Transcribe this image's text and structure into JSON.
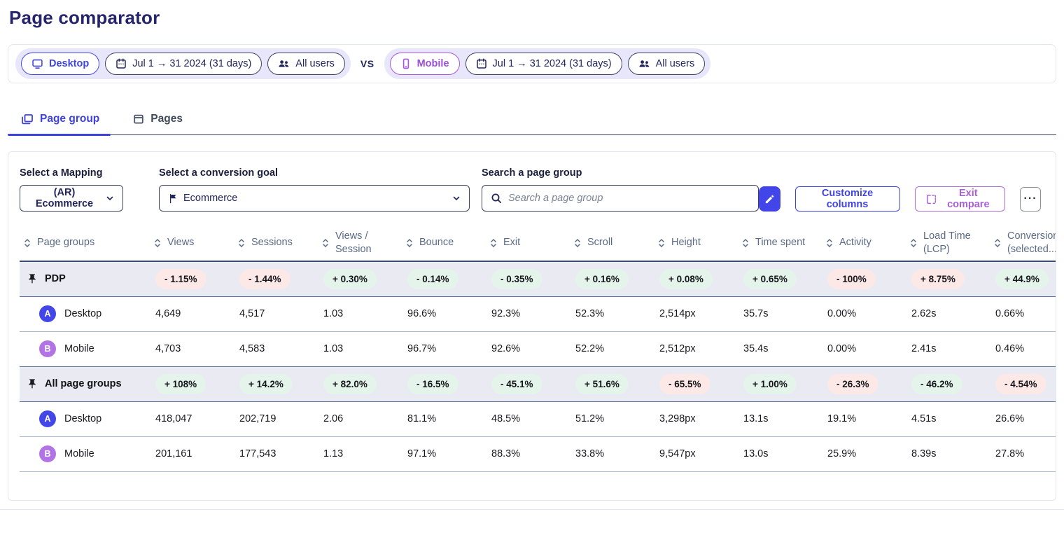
{
  "title": "Page comparator",
  "compare_bar": {
    "vs": "VS",
    "side_a": {
      "device": "Desktop",
      "date_range": "Jul 1 → 31 2024 (31 days)",
      "segment": "All users"
    },
    "side_b": {
      "device": "Mobile",
      "date_range": "Jul 1 → 31 2024 (31 days)",
      "segment": "All users"
    }
  },
  "tabs": {
    "page_group": "Page group",
    "pages": "Pages"
  },
  "controls": {
    "mapping_label": "Select a Mapping",
    "mapping_value": "(AR) Ecommerce",
    "goal_label": "Select a conversion goal",
    "goal_value": "Ecommerce",
    "search_label": "Search a page group",
    "search_placeholder": "Search a page group",
    "customize_columns": "Customize columns",
    "exit_compare": "Exit compare",
    "more": "···"
  },
  "table": {
    "columns": [
      "Page groups",
      "Views",
      "Sessions",
      "Views / Session",
      "Bounce",
      "Exit",
      "Scroll",
      "Height",
      "Time spent",
      "Activity",
      "Load Time (LCP)",
      "Conversion (selected..."
    ],
    "rows": [
      {
        "kind": "summary",
        "pinned": true,
        "label": "PDP",
        "deltas": [
          {
            "text": "- 1.15%",
            "tone": "bad"
          },
          {
            "text": "- 1.44%",
            "tone": "bad"
          },
          {
            "text": "+ 0.30%",
            "tone": "good"
          },
          {
            "text": "- 0.14%",
            "tone": "good"
          },
          {
            "text": "- 0.35%",
            "tone": "good"
          },
          {
            "text": "+ 0.16%",
            "tone": "good"
          },
          {
            "text": "+ 0.08%",
            "tone": "good"
          },
          {
            "text": "+ 0.65%",
            "tone": "good"
          },
          {
            "text": "- 100%",
            "tone": "bad"
          },
          {
            "text": "+ 8.75%",
            "tone": "bad"
          },
          {
            "text": "+ 44.9%",
            "tone": "good"
          }
        ]
      },
      {
        "kind": "data",
        "badge": "A",
        "badge_tone": "a",
        "label": "Desktop",
        "values": [
          "4,649",
          "4,517",
          "1.03",
          "96.6%",
          "92.3%",
          "52.3%",
          "2,514px",
          "35.7s",
          "0.00%",
          "2.62s",
          "0.66%"
        ]
      },
      {
        "kind": "data",
        "badge": "B",
        "badge_tone": "b",
        "label": "Mobile",
        "values": [
          "4,703",
          "4,583",
          "1.03",
          "96.7%",
          "92.6%",
          "52.2%",
          "2,512px",
          "35.4s",
          "0.00%",
          "2.41s",
          "0.46%"
        ]
      },
      {
        "kind": "summary",
        "pinned": true,
        "label": "All page groups",
        "deltas": [
          {
            "text": "+ 108%",
            "tone": "good"
          },
          {
            "text": "+ 14.2%",
            "tone": "good"
          },
          {
            "text": "+ 82.0%",
            "tone": "good"
          },
          {
            "text": "- 16.5%",
            "tone": "good"
          },
          {
            "text": "- 45.1%",
            "tone": "good"
          },
          {
            "text": "+ 51.6%",
            "tone": "good"
          },
          {
            "text": "- 65.5%",
            "tone": "bad"
          },
          {
            "text": "+ 1.00%",
            "tone": "good"
          },
          {
            "text": "- 26.3%",
            "tone": "bad"
          },
          {
            "text": "- 46.2%",
            "tone": "good"
          },
          {
            "text": "- 4.54%",
            "tone": "bad"
          }
        ]
      },
      {
        "kind": "data",
        "badge": "A",
        "badge_tone": "a",
        "label": "Desktop",
        "values": [
          "418,047",
          "202,719",
          "2.06",
          "81.1%",
          "48.5%",
          "51.2%",
          "3,298px",
          "13.1s",
          "19.1%",
          "4.51s",
          "26.6%"
        ]
      },
      {
        "kind": "data",
        "badge": "B",
        "badge_tone": "b",
        "label": "Mobile",
        "values": [
          "201,161",
          "177,543",
          "1.13",
          "97.1%",
          "88.3%",
          "33.8%",
          "9,547px",
          "13.0s",
          "25.9%",
          "8.39s",
          "27.8%"
        ]
      }
    ]
  },
  "colors": {
    "accent_blue": "#4246e8",
    "accent_purple": "#a85fd8",
    "title_indigo": "#26256b",
    "good_badge_bg": "#e4f4ea",
    "bad_badge_bg": "#fce8e6",
    "pinned_row_bg": "#e9eaf2",
    "badge_a": "#4347e8",
    "badge_b": "#b273e4",
    "group_pill_bg": "#e8e6fb"
  }
}
